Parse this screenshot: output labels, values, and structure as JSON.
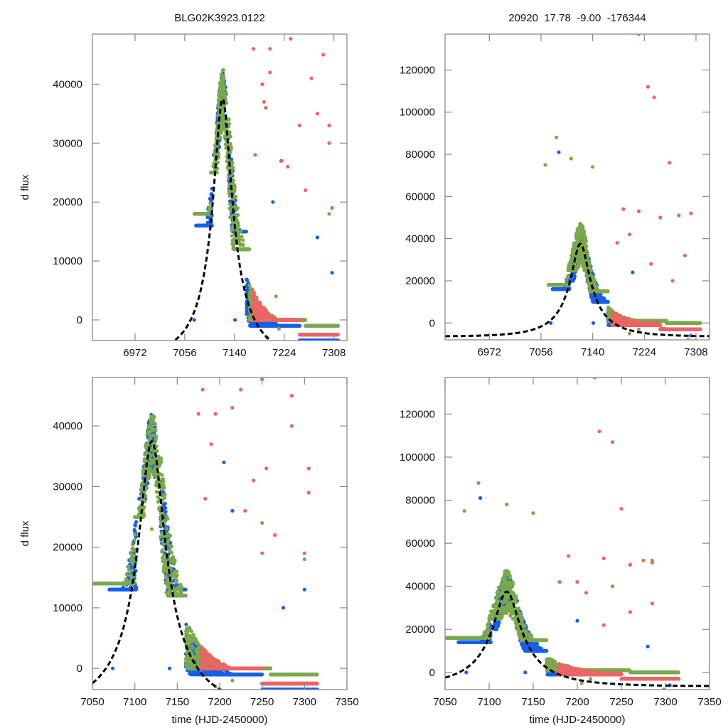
{
  "chart_data": [
    {
      "id": "top-left",
      "type": "scatter",
      "title": "BLG02K3923.0122",
      "xlabel": "",
      "ylabel": "d flux",
      "xlim": [
        6900,
        7330
      ],
      "ylim": [
        -3500,
        48500
      ],
      "xticks": [
        6972,
        7056,
        7140,
        7224,
        7308
      ],
      "yticks": [
        0,
        10000,
        20000,
        30000,
        40000
      ],
      "grid": false,
      "series_colors": {
        "blue": "#1560e8",
        "green": "#7ba84a",
        "red": "#ec6464",
        "model": "#000000"
      },
      "model": {
        "peak_time": 7120,
        "peak_flux": 37500,
        "baseline": -6500,
        "u0": 0.2,
        "tE": 75
      },
      "series": [
        {
          "name": "blue",
          "segments": [
            [
              7075,
              7102,
              16000,
              45000
            ],
            [
              7105,
              7125,
              28000,
              48000
            ],
            [
              7130,
              7160,
              15000,
              40000
            ],
            [
              7160,
              7250,
              -1000,
              15000
            ],
            [
              7250,
              7315,
              -3500,
              5000
            ]
          ],
          "outliers": [
            [
              7072,
              0
            ],
            [
              7141,
              0
            ],
            [
              7205,
              20000
            ],
            [
              7219,
              27000
            ],
            [
              7280,
              14000
            ],
            [
              7305,
              8000
            ]
          ]
        },
        {
          "name": "green",
          "segments": [
            [
              7072,
              7100,
              18000,
              44000
            ],
            [
              7100,
              7130,
              25000,
              48500
            ],
            [
              7130,
              7165,
              12000,
              45000
            ],
            [
              7165,
              7260,
              0,
              20000
            ],
            [
              7260,
              7315,
              -1000,
              10000
            ]
          ],
          "outliers": [
            [
              7195,
              -3000
            ],
            [
              7215,
              -1500
            ],
            [
              7300,
              18000
            ],
            [
              7210,
              4000
            ]
          ]
        },
        {
          "name": "red",
          "segments": [
            [
              7170,
              7250,
              0,
              20000
            ],
            [
              7250,
              7315,
              -2500,
              8000
            ]
          ],
          "outliers": [
            [
              7172,
              46000
            ],
            [
              7200,
              46000
            ],
            [
              7235,
              47700
            ],
            [
              7290,
              45000
            ],
            [
              7200,
              42000
            ],
            [
              7190,
              37000
            ],
            [
              7250,
              33000
            ],
            [
              7300,
              33000
            ],
            [
              7175,
              28000
            ],
            [
              7220,
              27000
            ],
            [
              7260,
              22000
            ],
            [
              7280,
              35000
            ],
            [
              7300,
              30000
            ],
            [
              7305,
              19000
            ],
            [
              7230,
              26000
            ],
            [
              7187,
              40000
            ],
            [
              7193,
              36000
            ],
            [
              7270,
              41000
            ]
          ]
        }
      ]
    },
    {
      "id": "top-right",
      "type": "scatter",
      "title": "20920  17.78  -9.00  -176344",
      "xlabel": "",
      "ylabel": "",
      "xlim": [
        6900,
        7330
      ],
      "ylim": [
        -8000,
        137000
      ],
      "xticks": [
        6972,
        7056,
        7140,
        7224,
        7308
      ],
      "yticks": [
        0,
        20000,
        40000,
        60000,
        80000,
        100000,
        120000
      ],
      "grid": false,
      "series_colors": {
        "blue": "#1560e8",
        "green": "#7ba84a",
        "red": "#ec6464",
        "model": "#000000"
      },
      "model": {
        "peak_time": 7120,
        "peak_flux": 37500,
        "baseline": -6500,
        "u0": 0.2,
        "tE": 75
      },
      "series": [
        {
          "name": "blue",
          "segments": [
            [
              7075,
              7102,
              16000,
              40000
            ],
            [
              7105,
              7125,
              20000,
              55000
            ],
            [
              7130,
              7165,
              10000,
              42000
            ],
            [
              7165,
              7250,
              -1000,
              16000
            ],
            [
              7250,
              7315,
              -3000,
              5000
            ]
          ],
          "outliers": [
            [
              7085,
              81000
            ],
            [
              7072,
              0
            ],
            [
              7141,
              0
            ],
            [
              7205,
              24000
            ],
            [
              7300,
              -6000
            ]
          ]
        },
        {
          "name": "green",
          "segments": [
            [
              7068,
              7100,
              18000,
              50000
            ],
            [
              7100,
              7130,
              25000,
              70000
            ],
            [
              7130,
              7165,
              15000,
              45000
            ],
            [
              7165,
              7260,
              1000,
              25000
            ],
            [
              7260,
              7315,
              0,
              12000
            ]
          ],
          "outliers": [
            [
              7081,
              88000
            ],
            [
              7063,
              75000
            ],
            [
              7105,
              78000
            ],
            [
              7140,
              74000
            ],
            [
              7200,
              -5000
            ],
            [
              7215,
              -3000
            ],
            [
              7295,
              -8000
            ]
          ]
        },
        {
          "name": "red",
          "segments": [
            [
              7172,
              7250,
              -1000,
              22000
            ],
            [
              7250,
              7315,
              -3000,
              10000
            ]
          ],
          "outliers": [
            [
              7215,
              137000
            ],
            [
              7230,
              112000
            ],
            [
              7240,
              107000
            ],
            [
              7265,
              76000
            ],
            [
              7190,
              54000
            ],
            [
              7215,
              53000
            ],
            [
              7280,
              51000
            ],
            [
              7300,
              52000
            ],
            [
              7200,
              42000
            ],
            [
              7250,
              50000
            ],
            [
              7180,
              38000
            ],
            [
              7290,
              32000
            ],
            [
              7235,
              28000
            ],
            [
              7270,
              20000
            ]
          ]
        }
      ]
    },
    {
      "id": "bottom-left",
      "type": "scatter",
      "title": "",
      "xlabel": "time (HJD-2450000)",
      "ylabel": "d flux",
      "xlim": [
        7050,
        7350
      ],
      "ylim": [
        -3500,
        48000
      ],
      "xticks": [
        7050,
        7100,
        7150,
        7200,
        7250,
        7300,
        7350
      ],
      "yticks": [
        0,
        10000,
        20000,
        30000,
        40000
      ],
      "grid": false,
      "series_colors": {
        "blue": "#1560e8",
        "green": "#7ba84a",
        "red": "#ec6464",
        "model": "#000000"
      },
      "model": {
        "peak_time": 7120,
        "peak_flux": 37500,
        "baseline": -6500,
        "u0": 0.2,
        "tE": 75
      },
      "series": [
        {
          "name": "blue",
          "segments": [
            [
              7070,
              7102,
              13000,
              45000
            ],
            [
              7105,
              7125,
              28000,
              48000
            ],
            [
              7130,
              7160,
              13000,
              40000
            ],
            [
              7160,
              7250,
              -1000,
              15000
            ],
            [
              7250,
              7315,
              -3500,
              5000
            ]
          ],
          "outliers": [
            [
              7074,
              0
            ],
            [
              7141,
              0
            ],
            [
              7205,
              34000
            ],
            [
              7215,
              26000
            ],
            [
              7275,
              10000
            ],
            [
              7300,
              13000
            ]
          ]
        },
        {
          "name": "green",
          "segments": [
            [
              7052,
              7100,
              14000,
              44000
            ],
            [
              7100,
              7130,
              25000,
              48000
            ],
            [
              7130,
              7160,
              12000,
              45000
            ],
            [
              7160,
              7260,
              0,
              20000
            ],
            [
              7260,
              7315,
              -1000,
              10000
            ]
          ],
          "outliers": [
            [
              7195,
              -3000
            ],
            [
              7215,
              -2000
            ],
            [
              7250,
              24000
            ],
            [
              7300,
              18000
            ],
            [
              7165,
              5000
            ],
            [
              7120,
              23000
            ]
          ]
        },
        {
          "name": "red",
          "segments": [
            [
              7177,
              7250,
              0,
              20000
            ],
            [
              7250,
              7315,
              -2500,
              8000
            ]
          ],
          "outliers": [
            [
              7180,
              46000
            ],
            [
              7225,
              46000
            ],
            [
              7250,
              47700
            ],
            [
              7285,
              45000
            ],
            [
              7195,
              42000
            ],
            [
              7190,
              37000
            ],
            [
              7255,
              33000
            ],
            [
              7305,
              33000
            ],
            [
              7183,
              28000
            ],
            [
              7230,
              26000
            ],
            [
              7265,
              22000
            ],
            [
              7285,
              40000
            ],
            [
              7305,
              29000
            ],
            [
              7300,
              19000
            ],
            [
              7240,
              31000
            ],
            [
              7175,
              42000
            ],
            [
              7215,
              43000
            ],
            [
              7250,
              19000
            ]
          ]
        }
      ]
    },
    {
      "id": "bottom-right",
      "type": "scatter",
      "title": "",
      "xlabel": "time (HJD-2450000)",
      "ylabel": "",
      "xlim": [
        7050,
        7350
      ],
      "ylim": [
        -8000,
        137000
      ],
      "xticks": [
        7050,
        7100,
        7150,
        7200,
        7250,
        7300,
        7350
      ],
      "yticks": [
        0,
        20000,
        40000,
        60000,
        80000,
        100000,
        120000
      ],
      "grid": false,
      "series_colors": {
        "blue": "#1560e8",
        "green": "#7ba84a",
        "red": "#ec6464",
        "model": "#000000"
      },
      "model": {
        "peak_time": 7120,
        "peak_flux": 37500,
        "baseline": -6500,
        "u0": 0.2,
        "tE": 75
      },
      "series": [
        {
          "name": "blue",
          "segments": [
            [
              7065,
              7102,
              14000,
              40000
            ],
            [
              7105,
              7125,
              20000,
              55000
            ],
            [
              7130,
              7165,
              10000,
              42000
            ],
            [
              7165,
              7250,
              -1000,
              16000
            ],
            [
              7250,
              7315,
              -3000,
              5000
            ]
          ],
          "outliers": [
            [
              7090,
              81000
            ],
            [
              7074,
              0
            ],
            [
              7141,
              0
            ],
            [
              7200,
              24000
            ],
            [
              7280,
              12000
            ],
            [
              7305,
              -6000
            ]
          ]
        },
        {
          "name": "green",
          "segments": [
            [
              7052,
              7100,
              16000,
              50000
            ],
            [
              7100,
              7130,
              25000,
              70000
            ],
            [
              7130,
              7165,
              15000,
              45000
            ],
            [
              7165,
              7260,
              1000,
              25000
            ],
            [
              7260,
              7315,
              0,
              12000
            ]
          ],
          "outliers": [
            [
              7088,
              88000
            ],
            [
              7072,
              75000
            ],
            [
              7120,
              78000
            ],
            [
              7150,
              74000
            ],
            [
              7205,
              -5000
            ],
            [
              7215,
              -3000
            ],
            [
              7298,
              -8000
            ],
            [
              7240,
              40000
            ],
            [
              7285,
              52000
            ]
          ]
        },
        {
          "name": "red",
          "segments": [
            [
              7178,
              7250,
              -1000,
              22000
            ],
            [
              7250,
              7315,
              -3000,
              10000
            ]
          ],
          "outliers": [
            [
              7220,
              137000
            ],
            [
              7225,
              112000
            ],
            [
              7240,
              107000
            ],
            [
              7250,
              76000
            ],
            [
              7190,
              54000
            ],
            [
              7230,
              53000
            ],
            [
              7260,
              50000
            ],
            [
              7275,
              52000
            ],
            [
              7285,
              51000
            ],
            [
              7200,
              42000
            ],
            [
              7210,
              37000
            ],
            [
              7180,
              42000
            ],
            [
              7260,
              28000
            ],
            [
              7285,
              32000
            ],
            [
              7230,
              22000
            ]
          ]
        }
      ]
    }
  ]
}
